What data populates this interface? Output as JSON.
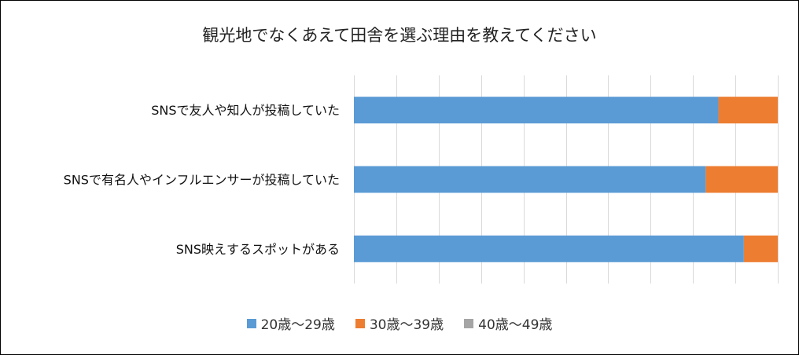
{
  "chart_data": {
    "type": "bar",
    "orientation": "horizontal",
    "stacked": true,
    "percent_stacked": true,
    "title": "観光地でなくあえて田舎を選ぶ理由を教えてください",
    "categories": [
      "SNSで友人や知人が投稿していた",
      "SNSで有名人やインフルエンサーが投稿していた",
      "SNS映えするスポットがある"
    ],
    "series": [
      {
        "name": "20歳～29歳",
        "color": "#5B9BD5",
        "values": [
          86,
          83,
          92
        ]
      },
      {
        "name": "30歳～39歳",
        "color": "#ED7D31",
        "values": [
          14,
          17,
          8
        ]
      },
      {
        "name": "40歳～49歳",
        "color": "#A5A5A5",
        "values": [
          0,
          0,
          0
        ]
      }
    ],
    "xlim": [
      0,
      100
    ],
    "grid": true,
    "legend_position": "bottom"
  }
}
